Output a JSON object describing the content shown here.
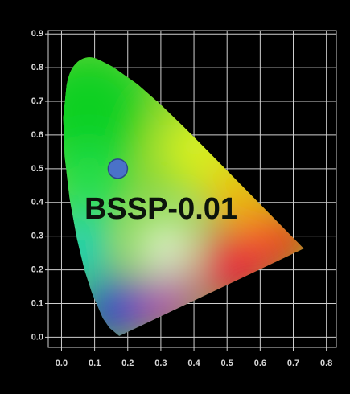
{
  "chart_data": {
    "type": "scatter",
    "annotation": "BSSP-0.01",
    "xlim": [
      -0.04,
      0.83
    ],
    "ylim": [
      -0.03,
      0.91
    ],
    "xticks": [
      {
        "value": 0,
        "label": "0.0"
      },
      0.1,
      0.2,
      0.3,
      0.4,
      0.5,
      0.6,
      0.7,
      0.8
    ],
    "yticks": [
      {
        "value": 0,
        "label": "0.0"
      },
      0.1,
      0.2,
      0.3,
      0.4,
      0.5,
      0.6,
      0.7,
      0.8,
      0.9
    ],
    "grid": true,
    "series": [
      {
        "color": "#4a72c8",
        "x": [
          0.17
        ],
        "values": [
          0.5
        ]
      }
    ]
  }
}
